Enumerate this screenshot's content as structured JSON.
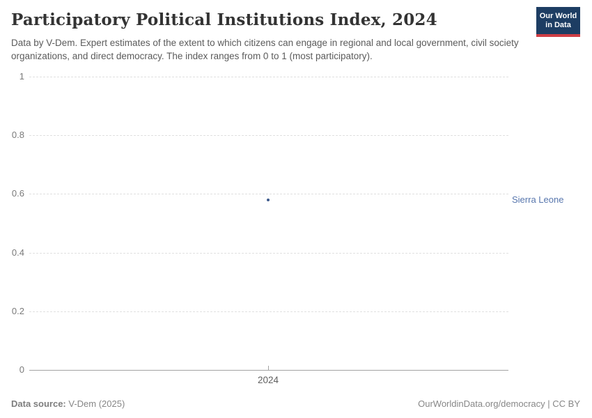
{
  "header": {
    "title": "Participatory Political Institutions Index, 2024",
    "subtitle": "Data by V-Dem. Expert estimates of the extent to which citizens can engage in regional and local government, civil society organizations, and direct democracy. The index ranges from 0 to 1 (most participatory).",
    "logo": {
      "line1": "Our World",
      "line2": "in Data"
    }
  },
  "chart_data": {
    "type": "scatter",
    "x": [
      2024
    ],
    "series": [
      {
        "name": "Sierra Leone",
        "values": [
          0.58
        ]
      }
    ],
    "title": "Participatory Political Institutions Index, 2024",
    "xlabel": "",
    "ylabel": "",
    "ylim": [
      0,
      1
    ],
    "yticks": [
      0,
      0.2,
      0.4,
      0.6,
      0.8,
      1
    ],
    "xticks": [
      "2024"
    ],
    "grid": "horizontal-dashed",
    "legend": "entity-label-right",
    "point_color": "#3d5a8c",
    "entity_label_color": "#5776ad"
  },
  "footer": {
    "source_label": "Data source:",
    "source_value": "V-Dem (2025)",
    "credit": "OurWorldinData.org/democracy | CC BY"
  },
  "colors": {
    "logo_bg": "#1d3d63",
    "logo_accent": "#cf3e45",
    "gridline": "#e0e0e0",
    "axis": "#a3a3a3"
  }
}
